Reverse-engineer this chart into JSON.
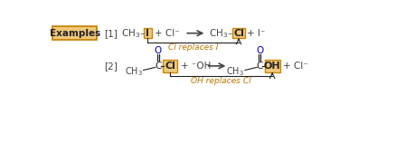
{
  "bg_color": "#ffffff",
  "box_color": "#f0c87a",
  "box_edge_color": "#c8860a",
  "examples_label": "Examples",
  "rxn1_label": "[1]",
  "rxn1_caption": "Cl replaces I",
  "rxn2_label": "[2]",
  "rxn2_caption": "OH replaces Cl",
  "text_color": "#444444",
  "orange_text": "#b87800",
  "blue_color": "#0000cc",
  "dark_text": "#222222"
}
